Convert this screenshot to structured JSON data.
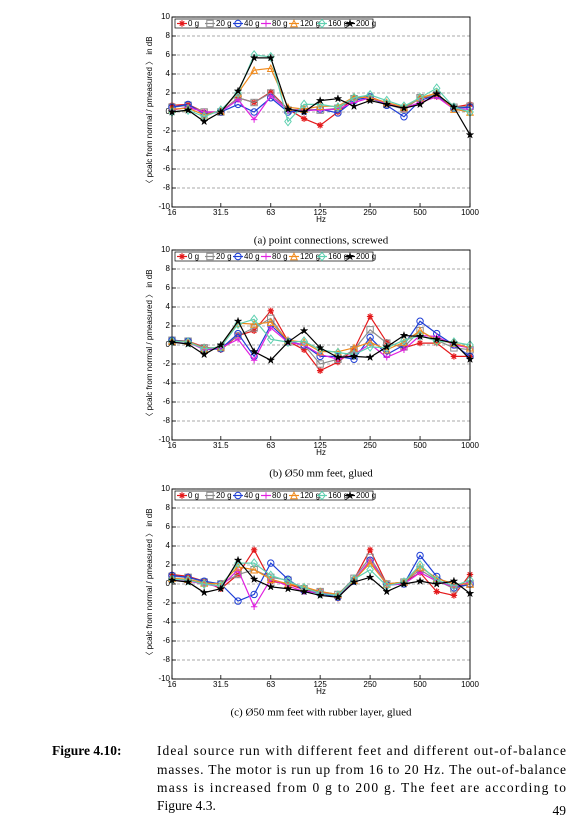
{
  "chart_data": [
    {
      "type": "line",
      "caption": "(a) point connections, screwed",
      "xlabel": "Hz",
      "ylabel": "〈 pcalc from normal / pmeasured 〉 in dB",
      "x": [
        16,
        20,
        25,
        31.5,
        40,
        50,
        63,
        80,
        100,
        125,
        160,
        200,
        250,
        315,
        400,
        500,
        630,
        800,
        1000
      ],
      "xscale": "log",
      "xlim": [
        16,
        1000
      ],
      "xticks": [
        16,
        31.5,
        63,
        125,
        250,
        500,
        1000
      ],
      "ylim": [
        -10,
        10
      ],
      "yticks": [
        -10,
        -8,
        -6,
        -4,
        -2,
        0,
        2,
        4,
        6,
        8,
        10
      ],
      "grid": true,
      "legend": "top",
      "series": [
        {
          "name": "0 g",
          "color": "#e41a1c",
          "marker": "asterisk",
          "values": [
            0.7,
            0.8,
            0,
            0,
            1.5,
            1,
            2.1,
            0.3,
            -0.7,
            -1.4,
            0,
            1.5,
            1.6,
            0.9,
            0.3,
            1.5,
            1.6,
            0.5,
            0.8
          ]
        },
        {
          "name": "20 g",
          "color": "#8c8c8c",
          "marker": "square",
          "values": [
            0.5,
            0.7,
            0,
            0,
            1.5,
            1,
            2,
            0.2,
            0.3,
            0.2,
            0.4,
            1.4,
            1.4,
            0.8,
            0.3,
            1.5,
            1.8,
            0.5,
            0.6
          ]
        },
        {
          "name": "40 g",
          "color": "#1f3fd6",
          "marker": "circle",
          "values": [
            0.5,
            0.8,
            -0.2,
            0,
            0.8,
            0,
            1.5,
            0,
            0.1,
            0.3,
            -0.1,
            1.2,
            1.6,
            0.7,
            -0.5,
            1.2,
            1.8,
            0.4,
            0.5
          ]
        },
        {
          "name": "80 g",
          "color": "#e020e0",
          "marker": "plus",
          "values": [
            0.2,
            0.5,
            0,
            0,
            1.3,
            -0.8,
            1.7,
            0.2,
            0.2,
            0.2,
            0.3,
            1,
            1.5,
            0.9,
            0.4,
            1,
            1.6,
            0.3,
            0.3
          ]
        },
        {
          "name": "120 g",
          "color": "#f08a1c",
          "marker": "triangle",
          "values": [
            0.3,
            0.4,
            -0.3,
            0.1,
            2,
            4.4,
            4.6,
            0.5,
            0.3,
            0.6,
            0.6,
            1.6,
            1.5,
            1,
            0.5,
            1.5,
            2,
            0.3,
            0
          ]
        },
        {
          "name": "160 g",
          "color": "#5fd0b0",
          "marker": "diamond",
          "values": [
            0,
            0.2,
            -0.5,
            0.2,
            2,
            6,
            5.8,
            -1,
            0.8,
            0.8,
            0.5,
            1.5,
            1.8,
            1.2,
            0.6,
            1.5,
            2.5,
            0.5,
            0
          ]
        },
        {
          "name": "200 g",
          "color": "#000000",
          "marker": "star",
          "values": [
            0,
            0.2,
            -1,
            0,
            2.2,
            5.7,
            5.7,
            0.3,
            0,
            1.2,
            1.4,
            0.6,
            1.2,
            0.8,
            0.4,
            0.8,
            1.9,
            0.5,
            -2.4
          ]
        }
      ]
    },
    {
      "type": "line",
      "caption": "(b) Ø50 mm feet, glued",
      "xlabel": "Hz",
      "ylabel": "〈 pcalc from normal / pmeasured 〉 in dB",
      "x": [
        16,
        20,
        25,
        31.5,
        40,
        50,
        63,
        80,
        100,
        125,
        160,
        200,
        250,
        315,
        400,
        500,
        630,
        800,
        1000
      ],
      "xscale": "log",
      "xlim": [
        16,
        1000
      ],
      "xticks": [
        16,
        31.5,
        63,
        125,
        250,
        500,
        1000
      ],
      "ylim": [
        -10,
        10
      ],
      "yticks": [
        -10,
        -8,
        -6,
        -4,
        -2,
        0,
        2,
        4,
        6,
        8,
        10
      ],
      "grid": true,
      "legend": "top",
      "series": [
        {
          "name": "0 g",
          "color": "#e41a1c",
          "marker": "asterisk",
          "values": [
            0.4,
            0.4,
            -0.2,
            -0.5,
            1,
            1.5,
            3.6,
            0.4,
            -0.5,
            -2.7,
            -1.8,
            -0.5,
            3,
            0.3,
            -0.3,
            0.2,
            0.2,
            -1.2,
            -1.2
          ]
        },
        {
          "name": "20 g",
          "color": "#8c8c8c",
          "marker": "square",
          "values": [
            0.5,
            0.4,
            -0.3,
            -0.3,
            1,
            1.8,
            2.8,
            0.3,
            0,
            -2,
            -1.5,
            -0.5,
            1.6,
            0.2,
            -0.2,
            1.5,
            0.5,
            -0.3,
            -0.5
          ]
        },
        {
          "name": "40 g",
          "color": "#1f3fd6",
          "marker": "circle",
          "values": [
            0.5,
            0.4,
            -0.5,
            -0.4,
            1.2,
            -1.2,
            2.1,
            0.4,
            0,
            -1.2,
            -1.2,
            -1.5,
            0.8,
            -1,
            0,
            2.5,
            1.2,
            0,
            -1.2
          ]
        },
        {
          "name": "80 g",
          "color": "#e020e0",
          "marker": "plus",
          "values": [
            0.3,
            0.3,
            -0.5,
            -0.3,
            0.6,
            -1.6,
            1.8,
            0.3,
            0,
            -1,
            -1.5,
            -1,
            0.1,
            -1.3,
            -0.5,
            1,
            0.9,
            0,
            -0.3
          ]
        },
        {
          "name": "120 g",
          "color": "#f08a1c",
          "marker": "triangle",
          "values": [
            0.4,
            0.4,
            -0.4,
            -0.2,
            2.3,
            2.2,
            2.4,
            0.5,
            0.3,
            -0.7,
            -0.7,
            -0.3,
            0.3,
            -0.5,
            0.3,
            1.5,
            0.5,
            0.2,
            -0.3
          ]
        },
        {
          "name": "160 g",
          "color": "#5fd0b0",
          "marker": "diamond",
          "values": [
            0.4,
            0.3,
            -0.4,
            -0.2,
            2.2,
            2.7,
            0.6,
            0.3,
            0.4,
            -0.5,
            -0.8,
            -1,
            -0.2,
            -0.3,
            0.5,
            1,
            0.4,
            0.3,
            0
          ]
        },
        {
          "name": "200 g",
          "color": "#000000",
          "marker": "star",
          "values": [
            0.3,
            0.1,
            -1,
            0,
            2.5,
            -0.7,
            -1.6,
            0.3,
            1.5,
            -0.3,
            -1.3,
            -1.2,
            -1.3,
            -0.2,
            1,
            0.9,
            0.6,
            0.2,
            -1.5
          ]
        }
      ]
    },
    {
      "type": "line",
      "caption": "(c) Ø50 mm feet with rubber layer, glued",
      "xlabel": "Hz",
      "ylabel": "〈 pcalc from normal / pmeasured 〉 in dB",
      "x": [
        16,
        20,
        25,
        31.5,
        40,
        50,
        63,
        80,
        100,
        125,
        160,
        200,
        250,
        315,
        400,
        500,
        630,
        800,
        1000
      ],
      "xscale": "log",
      "xlim": [
        16,
        1000
      ],
      "xticks": [
        16,
        31.5,
        63,
        125,
        250,
        500,
        1000
      ],
      "ylim": [
        -10,
        10
      ],
      "yticks": [
        -10,
        -8,
        -6,
        -4,
        -2,
        0,
        2,
        4,
        6,
        8,
        10
      ],
      "grid": true,
      "legend": "top",
      "series": [
        {
          "name": "0 g",
          "color": "#e41a1c",
          "marker": "asterisk",
          "values": [
            1,
            0.8,
            0.3,
            -0.5,
            1,
            3.6,
            0.3,
            0,
            -0.6,
            -0.8,
            -1.5,
            0.5,
            3.6,
            0,
            0.2,
            1.2,
            -0.8,
            -1.2,
            1
          ]
        },
        {
          "name": "20 g",
          "color": "#8c8c8c",
          "marker": "square",
          "values": [
            0.8,
            0.7,
            0.2,
            0,
            1,
            1.5,
            0.7,
            0.4,
            -0.5,
            -0.8,
            -1.1,
            0.6,
            2.8,
            0,
            0.2,
            1.5,
            0.4,
            -0.5,
            0
          ]
        },
        {
          "name": "40 g",
          "color": "#1f3fd6",
          "marker": "circle",
          "values": [
            0.9,
            0.7,
            0.3,
            0,
            -1.8,
            -1.1,
            2.2,
            0.5,
            -0.7,
            -1,
            -1.4,
            0.3,
            2.5,
            -0.1,
            0,
            3,
            0.8,
            -0.4,
            0
          ]
        },
        {
          "name": "80 g",
          "color": "#e020e0",
          "marker": "plus",
          "values": [
            0.4,
            0.3,
            0,
            -0.3,
            1.5,
            -2.4,
            0.5,
            -0.2,
            -0.8,
            -0.9,
            -1.2,
            0.4,
            2.5,
            -0.1,
            0,
            1.2,
            0.3,
            -0.3,
            0.2
          ]
        },
        {
          "name": "120 g",
          "color": "#f08a1c",
          "marker": "triangle",
          "values": [
            0.6,
            0.5,
            0.1,
            0,
            1.8,
            1.5,
            0.5,
            0,
            -0.3,
            -0.8,
            -1.1,
            0.4,
            2.2,
            0,
            0.2,
            1.8,
            0.6,
            0,
            0
          ]
        },
        {
          "name": "160 g",
          "color": "#5fd0b0",
          "marker": "diamond",
          "values": [
            0.5,
            0.4,
            0,
            -0.2,
            2.2,
            2.2,
            0.9,
            0.3,
            -0.4,
            -1,
            -1.2,
            0.5,
            1.5,
            -0.2,
            0.2,
            2,
            0.4,
            -0.2,
            0.4
          ]
        },
        {
          "name": "200 g",
          "color": "#000000",
          "marker": "star",
          "values": [
            0.4,
            0.2,
            -0.9,
            -0.5,
            2.5,
            0.5,
            -0.3,
            -0.5,
            -0.8,
            -1.2,
            -1.4,
            0.2,
            0.7,
            -0.8,
            0,
            0.3,
            0,
            0.3,
            -1
          ]
        }
      ]
    }
  ],
  "figure_caption": {
    "label": "Figure 4.10:",
    "lines": [
      "Ideal source run with different feet and different out-of-balance",
      "masses. The motor is run up from 16 to 20 Hz. The out-of-balance",
      "mass is increased from 0 g to 200 g. The feet are according to",
      "Figure 4.3."
    ]
  },
  "page_number": "49"
}
